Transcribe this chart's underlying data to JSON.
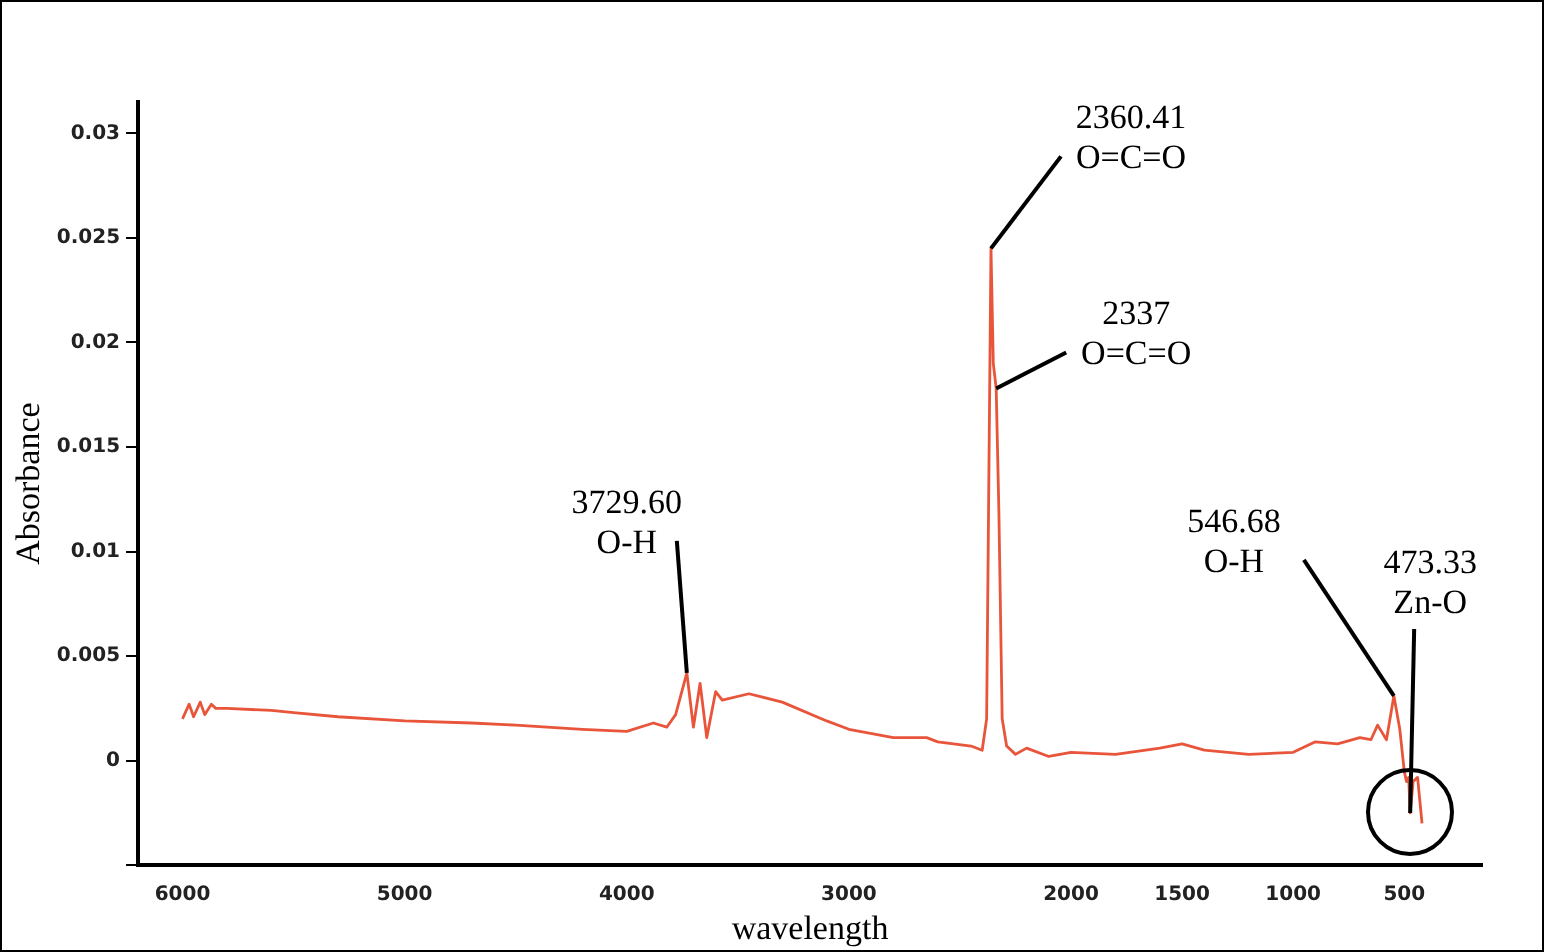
{
  "chart_data": {
    "type": "line",
    "xlabel": "wavelength",
    "ylabel": "Absorbance",
    "x": [
      6000,
      5970,
      5950,
      5920,
      5900,
      5870,
      5850,
      5800,
      5600,
      5500,
      5300,
      5000,
      4700,
      4500,
      4200,
      4000,
      3880,
      3820,
      3780,
      3729.6,
      3700,
      3670,
      3640,
      3600,
      3570,
      3450,
      3300,
      3100,
      3000,
      2800,
      2650,
      2600,
      2450,
      2400,
      2380,
      2360.41,
      2350,
      2337,
      2325,
      2310,
      2290,
      2250,
      2200,
      2100,
      2000,
      1800,
      1600,
      1500,
      1400,
      1200,
      1000,
      900,
      800,
      700,
      650,
      620,
      580,
      546.68,
      520,
      500,
      490,
      480,
      473.33,
      460,
      440,
      420
    ],
    "series": [
      {
        "color": "#e8553a",
        "values": [
          0.002,
          0.0027,
          0.0021,
          0.0028,
          0.0022,
          0.0027,
          0.0025,
          0.0025,
          0.0024,
          0.0023,
          0.0021,
          0.0019,
          0.0018,
          0.0017,
          0.0015,
          0.0014,
          0.0018,
          0.0016,
          0.0022,
          0.0042,
          0.0016,
          0.0037,
          0.0011,
          0.0033,
          0.0029,
          0.0032,
          0.0028,
          0.0019,
          0.0015,
          0.0011,
          0.0011,
          0.0009,
          0.0007,
          0.0005,
          0.002,
          0.0245,
          0.019,
          0.0178,
          0.012,
          0.002,
          0.0007,
          0.0003,
          0.0006,
          0.0002,
          0.0004,
          0.0003,
          0.0006,
          0.0008,
          0.0005,
          0.0003,
          0.0004,
          0.0009,
          0.0008,
          0.0011,
          0.001,
          0.0017,
          0.001,
          0.0031,
          0.0015,
          -0.0005,
          -0.001,
          -0.0008,
          -0.0025,
          -0.001,
          -0.0008,
          -0.003
        ]
      }
    ],
    "xlim": [
      6200,
      150
    ],
    "xticks": [
      6000,
      5000,
      4000,
      3000,
      2000,
      1500,
      1000,
      500
    ],
    "ylim": [
      -0.005,
      0.0315
    ],
    "yticks": [
      {
        "value": -0.005,
        "label": null
      },
      0,
      0.005,
      0.01,
      0.015,
      0.02,
      0.025,
      0.03
    ],
    "grid": false,
    "legend": false,
    "marker": "none",
    "line_style": "solid",
    "annotations": [
      {
        "text": "2360.41\nO=C=O",
        "x": 2360.41,
        "y": 0.0245
      },
      {
        "text": "2337\nO=C=O",
        "x": 2337,
        "y": 0.0178
      },
      {
        "text": "3729.60\nO-H",
        "x": 3729.6,
        "y": 0.0042
      },
      {
        "text": "546.68\nO-H",
        "x": 546.68,
        "y": 0.0031
      },
      {
        "text": "473.33\nZn-O",
        "x": 473.33,
        "y": -0.0025
      }
    ]
  }
}
